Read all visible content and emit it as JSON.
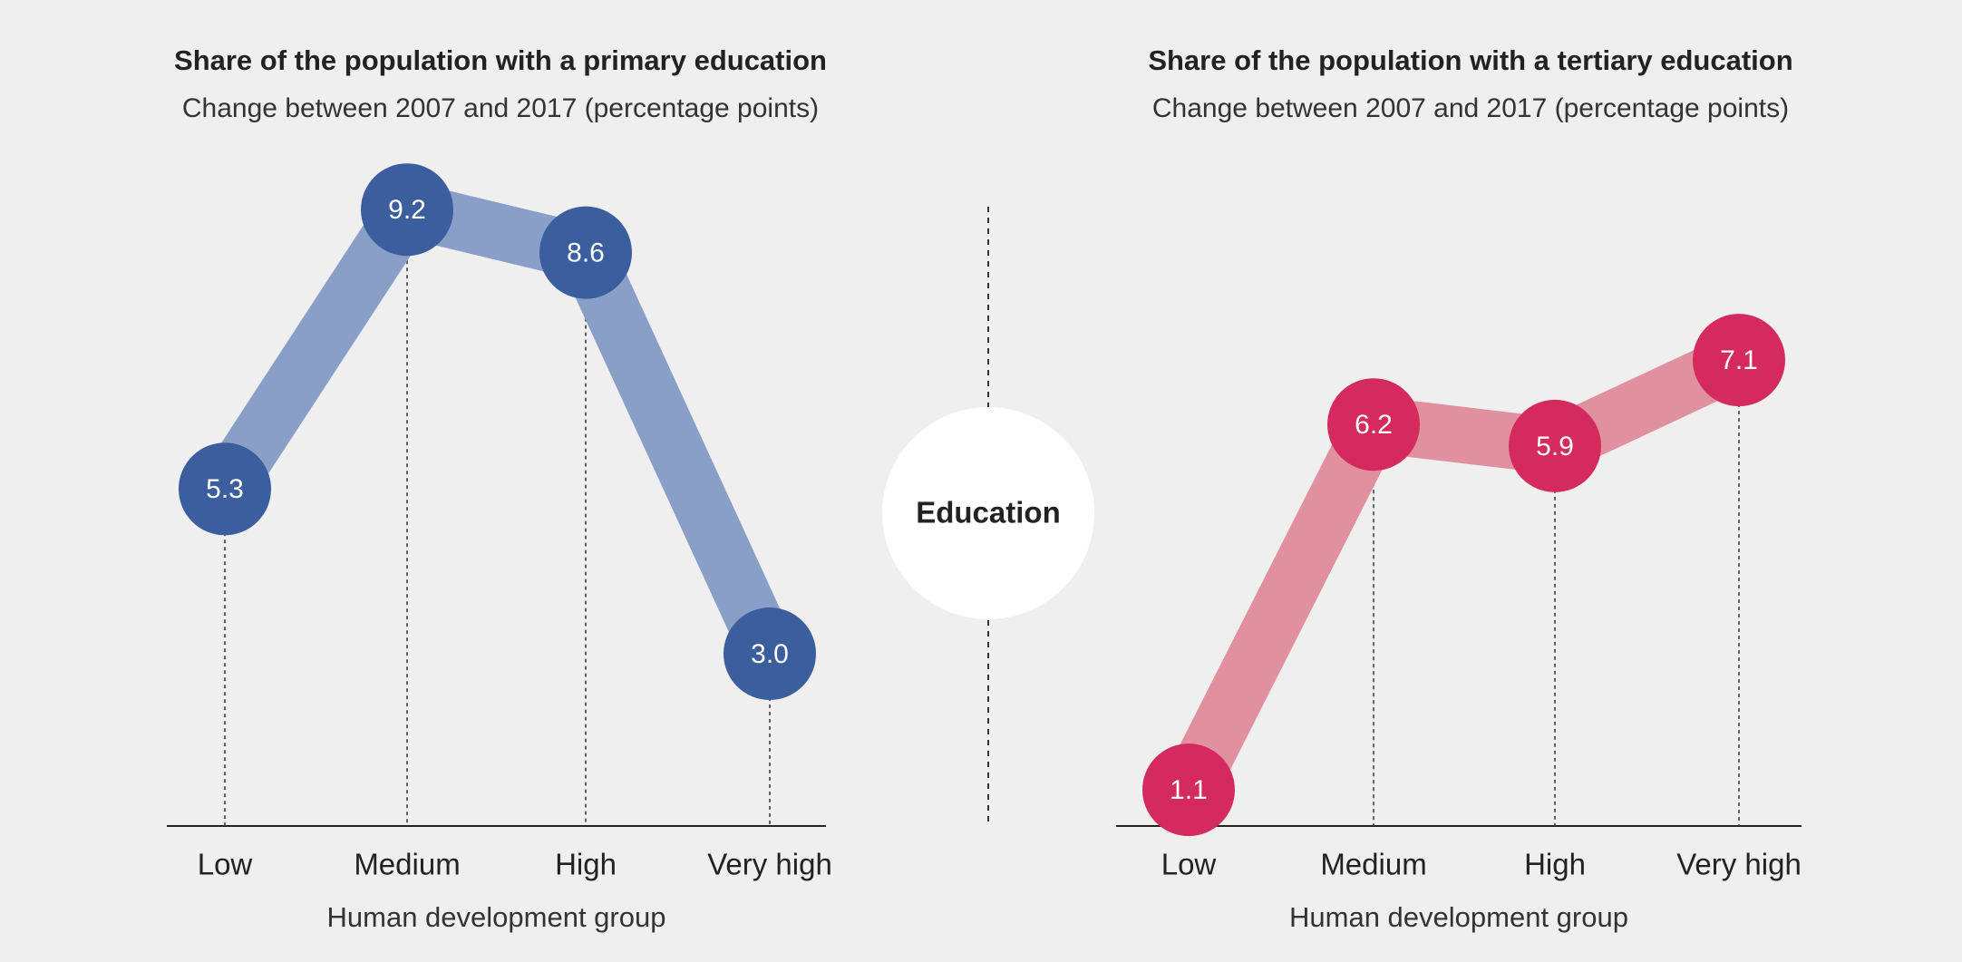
{
  "chart_data": [
    {
      "type": "line",
      "title": "Share of the population with a primary education",
      "subtitle": "Change between 2007 and 2017 (percentage points)",
      "x_label": "Human development group",
      "categories": [
        "Low",
        "Medium",
        "High",
        "Very high"
      ],
      "values": [
        5.3,
        9.2,
        8.6,
        3.0
      ],
      "value_labels": [
        "5.3",
        "9.2",
        "8.6",
        "3.0"
      ],
      "color": "#3a5e9e",
      "line_color": "#8a9fc8"
    },
    {
      "type": "line",
      "title": "Share of the population with a tertiary education",
      "subtitle": "Change between 2007 and 2017 (percentage points)",
      "x_label": "Human development group",
      "categories": [
        "Low",
        "Medium",
        "High",
        "Very high"
      ],
      "values": [
        1.1,
        6.2,
        5.9,
        7.1
      ],
      "value_labels": [
        "1.1",
        "6.2",
        "5.9",
        "7.1"
      ],
      "color": "#d42a5e",
      "line_color": "#e0909f"
    }
  ],
  "center_label": "Education"
}
